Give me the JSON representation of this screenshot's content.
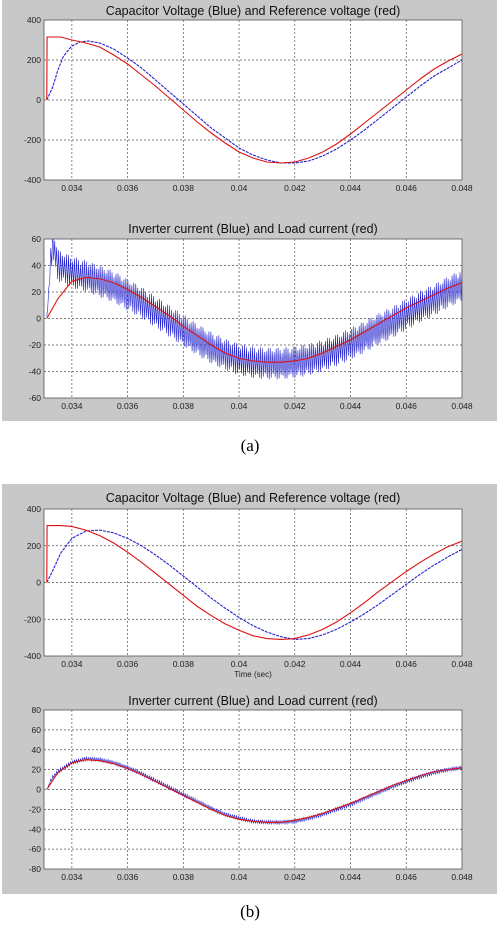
{
  "figure": {
    "caption_a": "(a)",
    "caption_b": "(b)"
  },
  "colors": {
    "blue": "#2222cc",
    "red": "#dd1111",
    "panel": "#c8c8c8"
  },
  "chart_data": [
    {
      "type": "line",
      "title": "Capacitor Voltage (Blue) and Reference voltage (red)",
      "xlabel": "",
      "ylabel": "",
      "xlim": [
        0.033,
        0.048
      ],
      "ylim": [
        -400,
        400
      ],
      "xticks": [
        0.034,
        0.036,
        0.038,
        0.04,
        0.042,
        0.044,
        0.046,
        0.048
      ],
      "xtick_labels": [
        "0.034",
        "0.036",
        "0.038",
        "0.04",
        "0.042",
        "0.044",
        "0.046",
        "0.048"
      ],
      "yticks": [
        -400,
        -200,
        0,
        200,
        400
      ],
      "grid": true,
      "series": [
        {
          "color": "blue",
          "x": [
            0.0331,
            0.0333,
            0.0335,
            0.0337,
            0.034,
            0.0343,
            0.0346,
            0.035,
            0.0355,
            0.036,
            0.0365,
            0.037,
            0.0375,
            0.038,
            0.0385,
            0.039,
            0.0395,
            0.04,
            0.0405,
            0.041,
            0.0415,
            0.042,
            0.0425,
            0.043,
            0.0435,
            0.044,
            0.0445,
            0.045,
            0.0455,
            0.046,
            0.0465,
            0.047,
            0.0475,
            0.048
          ],
          "y": [
            0,
            60,
            150,
            220,
            270,
            290,
            295,
            285,
            255,
            210,
            160,
            100,
            40,
            -20,
            -80,
            -140,
            -190,
            -240,
            -275,
            -300,
            -315,
            -315,
            -305,
            -280,
            -245,
            -200,
            -150,
            -95,
            -40,
            15,
            70,
            120,
            160,
            200
          ]
        },
        {
          "color": "red",
          "x": [
            0.0331,
            0.03311,
            0.0336,
            0.034,
            0.0345,
            0.035,
            0.0355,
            0.036,
            0.0365,
            0.037,
            0.0375,
            0.038,
            0.0385,
            0.039,
            0.0395,
            0.04,
            0.0405,
            0.041,
            0.0415,
            0.042,
            0.0425,
            0.043,
            0.0435,
            0.044,
            0.0445,
            0.045,
            0.0455,
            0.046,
            0.0465,
            0.047,
            0.0475,
            0.048
          ],
          "y": [
            0,
            315,
            315,
            300,
            285,
            265,
            225,
            180,
            125,
            70,
            10,
            -50,
            -110,
            -165,
            -215,
            -260,
            -290,
            -310,
            -315,
            -310,
            -290,
            -260,
            -220,
            -170,
            -115,
            -60,
            -5,
            50,
            105,
            155,
            195,
            230
          ]
        }
      ]
    },
    {
      "type": "line",
      "title": "Inverter current (Blue) and Load current (red)",
      "xlabel": "",
      "ylabel": "",
      "xlim": [
        0.033,
        0.048
      ],
      "ylim": [
        -60,
        60
      ],
      "xticks": [
        0.034,
        0.036,
        0.038,
        0.04,
        0.042,
        0.044,
        0.046,
        0.048
      ],
      "xtick_labels": [
        "0.034",
        "0.036",
        "0.038",
        "0.04",
        "0.042",
        "0.044",
        "0.046",
        "0.048"
      ],
      "yticks": [
        -60,
        -40,
        -20,
        0,
        20,
        40,
        60
      ],
      "grid": true,
      "series": [
        {
          "color": "blue",
          "style": "switching-ripple",
          "ripple_amplitude": 12,
          "x": [
            0.0331,
            0.0333,
            0.0335,
            0.034,
            0.0345,
            0.035,
            0.0355,
            0.036,
            0.0365,
            0.037,
            0.0375,
            0.038,
            0.0385,
            0.039,
            0.0395,
            0.04,
            0.0405,
            0.041,
            0.0415,
            0.042,
            0.0425,
            0.043,
            0.0435,
            0.044,
            0.0445,
            0.045,
            0.0455,
            0.046,
            0.0465,
            0.047,
            0.0475,
            0.048
          ],
          "y": [
            0,
            58,
            40,
            35,
            32,
            28,
            24,
            18,
            12,
            5,
            -2,
            -9,
            -16,
            -22,
            -27,
            -31,
            -33,
            -34,
            -34,
            -33,
            -31,
            -28,
            -24,
            -19,
            -14,
            -8,
            -3,
            3,
            9,
            14,
            20,
            25
          ]
        },
        {
          "color": "red",
          "x": [
            0.0331,
            0.0335,
            0.034,
            0.0345,
            0.035,
            0.0355,
            0.036,
            0.0365,
            0.037,
            0.0375,
            0.038,
            0.0385,
            0.039,
            0.0395,
            0.04,
            0.0405,
            0.041,
            0.0415,
            0.042,
            0.0425,
            0.043,
            0.0435,
            0.044,
            0.0445,
            0.045,
            0.0455,
            0.046,
            0.0465,
            0.047,
            0.0475,
            0.048
          ],
          "y": [
            0,
            15,
            28,
            31,
            30,
            27,
            22,
            16,
            9,
            2,
            -6,
            -13,
            -20,
            -26,
            -30,
            -32,
            -33,
            -33,
            -32,
            -30,
            -26,
            -21,
            -16,
            -10,
            -4,
            2,
            8,
            13,
            18,
            23,
            27
          ]
        }
      ]
    },
    {
      "type": "line",
      "title": "Capacitor Voltage (Blue) and Reference voltage (red)",
      "xlabel": "Time (sec)",
      "ylabel": "",
      "xlim": [
        0.033,
        0.048
      ],
      "ylim": [
        -400,
        400
      ],
      "xticks": [
        0.034,
        0.036,
        0.038,
        0.04,
        0.042,
        0.044,
        0.046,
        0.048
      ],
      "xtick_labels": [
        "0.034",
        "0.036",
        "0.038",
        "0.04",
        "0.042",
        "0.044",
        "0.046",
        "0.048"
      ],
      "yticks": [
        -400,
        -200,
        0,
        200,
        400
      ],
      "grid": true,
      "series": [
        {
          "color": "blue",
          "x": [
            0.0331,
            0.0333,
            0.0336,
            0.034,
            0.0345,
            0.035,
            0.0355,
            0.036,
            0.0365,
            0.037,
            0.0375,
            0.038,
            0.0385,
            0.039,
            0.0395,
            0.04,
            0.0405,
            0.041,
            0.0415,
            0.042,
            0.0425,
            0.043,
            0.0435,
            0.044,
            0.0445,
            0.045,
            0.0455,
            0.046,
            0.0465,
            0.047,
            0.0475,
            0.048
          ],
          "y": [
            0,
            60,
            160,
            240,
            280,
            285,
            270,
            240,
            200,
            150,
            95,
            35,
            -25,
            -85,
            -140,
            -190,
            -235,
            -270,
            -295,
            -310,
            -305,
            -285,
            -255,
            -215,
            -170,
            -120,
            -65,
            -10,
            45,
            95,
            140,
            180
          ]
        },
        {
          "color": "red",
          "x": [
            0.0331,
            0.03311,
            0.0336,
            0.034,
            0.0345,
            0.035,
            0.0355,
            0.036,
            0.0365,
            0.037,
            0.0375,
            0.038,
            0.0385,
            0.039,
            0.0395,
            0.04,
            0.0405,
            0.041,
            0.0415,
            0.042,
            0.0425,
            0.043,
            0.0435,
            0.044,
            0.0445,
            0.045,
            0.0455,
            0.046,
            0.0465,
            0.047,
            0.0475,
            0.048
          ],
          "y": [
            0,
            310,
            310,
            305,
            285,
            255,
            215,
            165,
            110,
            50,
            -10,
            -70,
            -130,
            -180,
            -225,
            -260,
            -290,
            -305,
            -310,
            -305,
            -285,
            -255,
            -215,
            -165,
            -110,
            -50,
            5,
            60,
            110,
            155,
            195,
            225
          ]
        }
      ]
    },
    {
      "type": "line",
      "title": "Inverter current (Blue) and Load current (red)",
      "xlabel": "",
      "ylabel": "",
      "xlim": [
        0.033,
        0.048
      ],
      "ylim": [
        -80,
        80
      ],
      "xticks": [
        0.034,
        0.036,
        0.038,
        0.04,
        0.042,
        0.044,
        0.046,
        0.048
      ],
      "xtick_labels": [
        "0.034",
        "0.036",
        "0.038",
        "0.04",
        "0.042",
        "0.044",
        "0.046",
        "0.048"
      ],
      "yticks": [
        -80,
        -60,
        -40,
        -20,
        0,
        20,
        40,
        60,
        80
      ],
      "grid": true,
      "series": [
        {
          "color": "blue",
          "style": "switching-ripple",
          "ripple_amplitude": 2,
          "x": [
            0.0331,
            0.0333,
            0.0335,
            0.034,
            0.0345,
            0.035,
            0.0355,
            0.036,
            0.0365,
            0.037,
            0.0375,
            0.038,
            0.0385,
            0.039,
            0.0395,
            0.04,
            0.0405,
            0.041,
            0.0415,
            0.042,
            0.0425,
            0.043,
            0.0435,
            0.044,
            0.0445,
            0.045,
            0.0455,
            0.046,
            0.0465,
            0.047,
            0.0475,
            0.048
          ],
          "y": [
            0,
            12,
            18,
            27,
            31,
            30,
            27,
            22,
            16,
            9,
            2,
            -5,
            -12,
            -19,
            -25,
            -29,
            -32,
            -33,
            -33,
            -32,
            -29,
            -25,
            -20,
            -15,
            -9,
            -3,
            3,
            8,
            13,
            17,
            20,
            22
          ]
        },
        {
          "color": "red",
          "x": [
            0.0331,
            0.0335,
            0.034,
            0.0345,
            0.035,
            0.0355,
            0.036,
            0.0365,
            0.037,
            0.0375,
            0.038,
            0.0385,
            0.039,
            0.0395,
            0.04,
            0.0405,
            0.041,
            0.0415,
            0.042,
            0.0425,
            0.043,
            0.0435,
            0.044,
            0.0445,
            0.045,
            0.0455,
            0.046,
            0.0465,
            0.047,
            0.0475,
            0.048
          ],
          "y": [
            0,
            17,
            27,
            30,
            29,
            26,
            21,
            15,
            8,
            1,
            -6,
            -13,
            -20,
            -26,
            -30,
            -32,
            -33,
            -33,
            -31,
            -28,
            -24,
            -19,
            -14,
            -8,
            -2,
            4,
            9,
            14,
            18,
            20,
            22
          ]
        }
      ]
    }
  ]
}
